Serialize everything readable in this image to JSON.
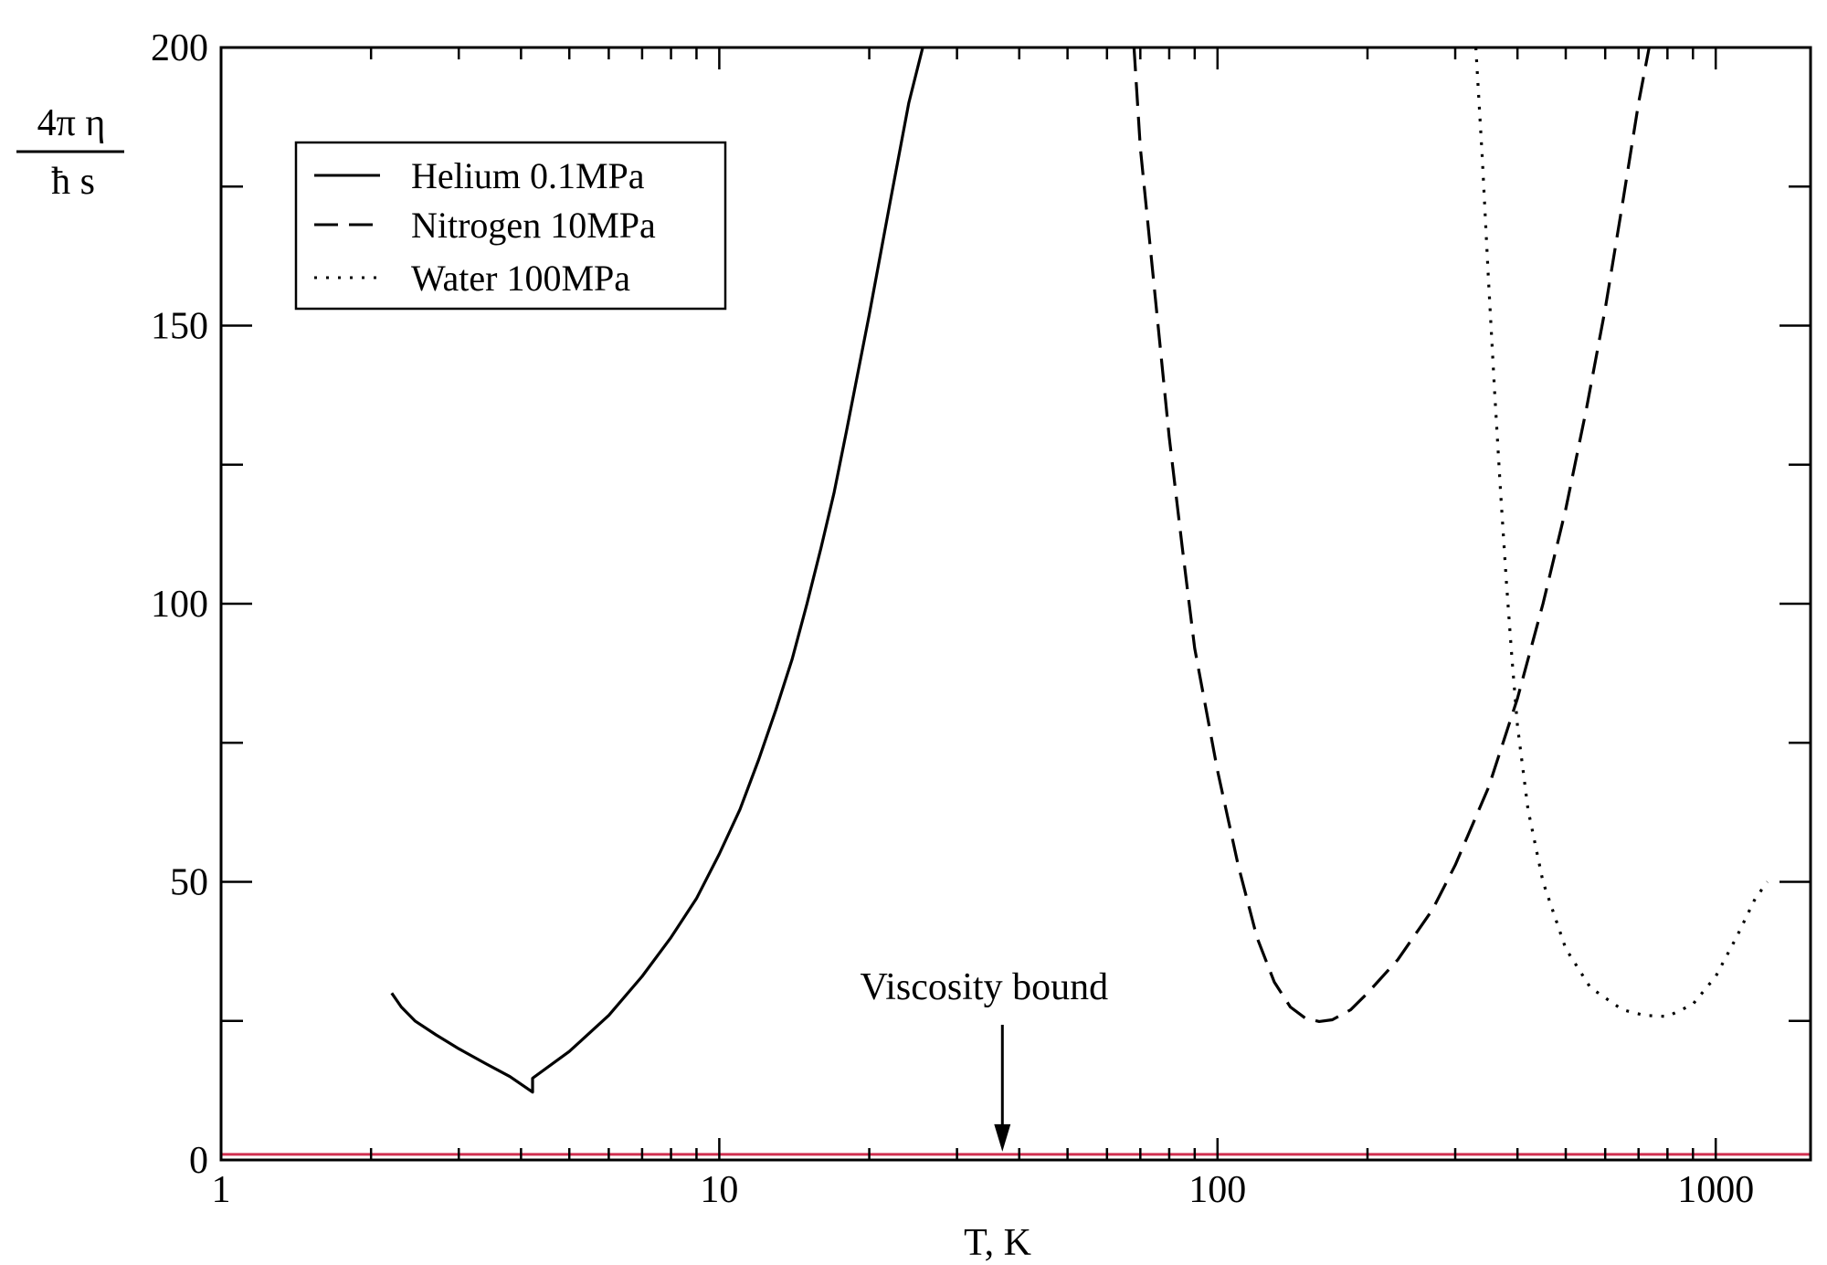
{
  "chart_data": {
    "type": "line",
    "title": "",
    "xlabel": "T, K",
    "ylabel": {
      "numerator": "4π η",
      "denominator": "ħ s"
    },
    "xscale": "log",
    "xlim": [
      1,
      1550
    ],
    "ylim": [
      0,
      200
    ],
    "x_ticks": [
      {
        "value": 1,
        "label": "1"
      },
      {
        "value": 10,
        "label": "10"
      },
      {
        "value": 100,
        "label": "100"
      },
      {
        "value": 1000,
        "label": "1000"
      }
    ],
    "y_ticks": [
      {
        "value": 0,
        "label": "0"
      },
      {
        "value": 50,
        "label": "50"
      },
      {
        "value": 100,
        "label": "100"
      },
      {
        "value": 150,
        "label": "150"
      },
      {
        "value": 200,
        "label": "200"
      }
    ],
    "grid": false,
    "legend_position": "top-left",
    "series": [
      {
        "name": "Helium 0.1MPa",
        "style": "solid",
        "color": "#000000",
        "points": [
          [
            2.2,
            30
          ],
          [
            2.3,
            27.5
          ],
          [
            2.45,
            25
          ],
          [
            2.7,
            22.5
          ],
          [
            3.0,
            20
          ],
          [
            3.4,
            17.3
          ],
          [
            3.8,
            15
          ],
          [
            4.22,
            12.2
          ],
          [
            4.22,
            14.7
          ],
          [
            5.0,
            19.5
          ],
          [
            6.0,
            26
          ],
          [
            7.0,
            33
          ],
          [
            8.0,
            40
          ],
          [
            9.0,
            47
          ],
          [
            10.0,
            55
          ],
          [
            11.0,
            63
          ],
          [
            12.0,
            72
          ],
          [
            13.0,
            81
          ],
          [
            14.0,
            90
          ],
          [
            15.0,
            100
          ],
          [
            16.0,
            110
          ],
          [
            17.0,
            120
          ],
          [
            18.0,
            131
          ],
          [
            20.0,
            152
          ],
          [
            22.0,
            172
          ],
          [
            24.0,
            190
          ],
          [
            25.6,
            200
          ]
        ]
      },
      {
        "name": "Nitrogen 10MPa",
        "style": "dashed",
        "color": "#000000",
        "points": [
          [
            68,
            200
          ],
          [
            70,
            182
          ],
          [
            75,
            155
          ],
          [
            80,
            130
          ],
          [
            85,
            110
          ],
          [
            90,
            92
          ],
          [
            100,
            70
          ],
          [
            110,
            53
          ],
          [
            120,
            40
          ],
          [
            130,
            32
          ],
          [
            140,
            27.5
          ],
          [
            150,
            25.5
          ],
          [
            160,
            24.9
          ],
          [
            170,
            25.2
          ],
          [
            185,
            27
          ],
          [
            200,
            30
          ],
          [
            230,
            36
          ],
          [
            270,
            45
          ],
          [
            300,
            53
          ],
          [
            350,
            67
          ],
          [
            400,
            83
          ],
          [
            450,
            100
          ],
          [
            500,
            117
          ],
          [
            550,
            135
          ],
          [
            600,
            153
          ],
          [
            650,
            172
          ],
          [
            700,
            190
          ],
          [
            735,
            200
          ]
        ]
      },
      {
        "name": "Water 100MPa",
        "style": "dotted",
        "color": "#000000",
        "points": [
          [
            330,
            200
          ],
          [
            340,
            180
          ],
          [
            350,
            158
          ],
          [
            360,
            138
          ],
          [
            370,
            120
          ],
          [
            380,
            104
          ],
          [
            390,
            90
          ],
          [
            400,
            78
          ],
          [
            420,
            63
          ],
          [
            450,
            50
          ],
          [
            500,
            38
          ],
          [
            560,
            31
          ],
          [
            650,
            27
          ],
          [
            720,
            26
          ],
          [
            800,
            25.8
          ],
          [
            900,
            28
          ],
          [
            1000,
            33
          ],
          [
            1100,
            40
          ],
          [
            1200,
            47
          ],
          [
            1270,
            50
          ]
        ]
      }
    ],
    "reference_line": {
      "value": 1,
      "color": "#d03050"
    },
    "annotations": [
      {
        "text": "Viscosity bound",
        "arrow_to": [
          37,
          1.5
        ]
      }
    ]
  }
}
